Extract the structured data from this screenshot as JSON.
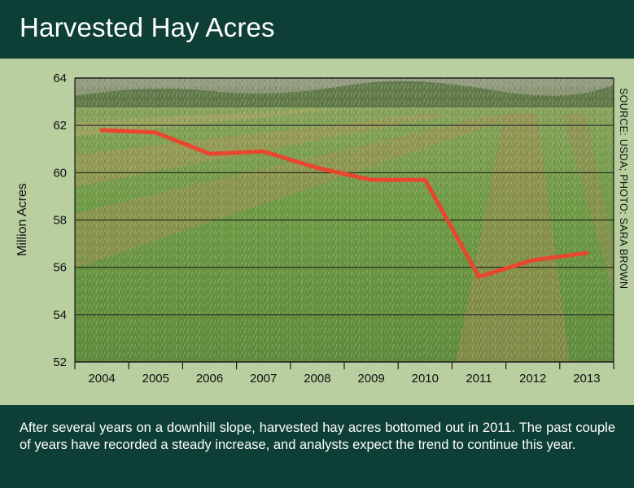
{
  "header": {
    "title": "Harvested Hay Acres"
  },
  "source_note": "SOURCE: USDA; PHOTO: SARA BROWN",
  "caption": "After several years on a downhill slope, harvested hay acres bottomed out in 2011. The past couple of years have recorded a steady increase, and analysts expect the trend to continue this year.",
  "colors": {
    "line": "#e8462e",
    "header_bg": "#0d3f36",
    "panel_bg": "#b9cfa0"
  },
  "chart_data": {
    "type": "line",
    "title": "Harvested Hay Acres",
    "xlabel": "",
    "ylabel": "Million Acres",
    "ylim": [
      52,
      64
    ],
    "yticks": [
      52,
      54,
      56,
      58,
      60,
      62,
      64
    ],
    "grid": true,
    "background": "photo of cut hay field",
    "x": [
      "2004",
      "2005",
      "2006",
      "2007",
      "2008",
      "2009",
      "2010",
      "2011",
      "2012",
      "2013"
    ],
    "series": [
      {
        "values": [
          61.8,
          61.7,
          60.8,
          60.9,
          60.2,
          59.7,
          59.7,
          55.6,
          56.3,
          56.6
        ]
      }
    ]
  }
}
